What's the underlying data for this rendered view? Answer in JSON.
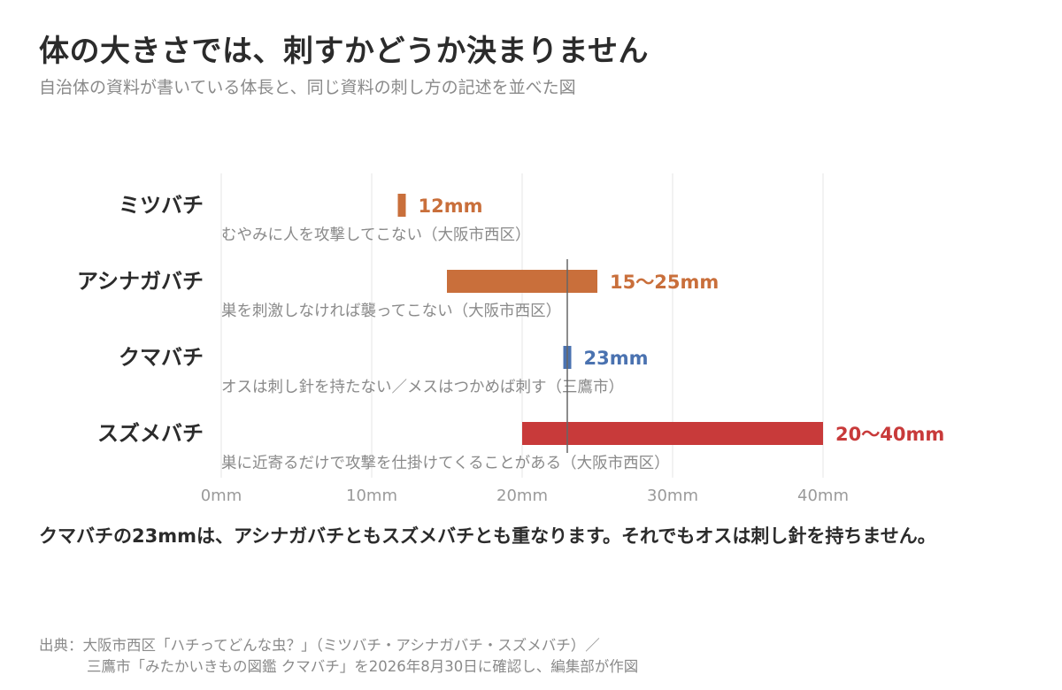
{
  "header": {
    "title": "体の大きさでは、刺すかどうか決まりません",
    "subtitle": "自治体の資料が書いている体長と、同じ資料の刺し方の記述を並べた図"
  },
  "chart_data": {
    "type": "bar",
    "orientation": "horizontal-range",
    "x_unit": "mm",
    "xlim": [
      0,
      40
    ],
    "x_ticks": [
      0,
      10,
      20,
      30,
      40
    ],
    "x_tick_labels": [
      "0mm",
      "10mm",
      "20mm",
      "30mm",
      "40mm"
    ],
    "grid": true,
    "reference_line": {
      "x": 23
    },
    "categories": [
      "ミツバチ",
      "アシナガバチ",
      "クマバチ",
      "スズメバチ"
    ],
    "series": [
      {
        "category": "ミツバチ",
        "min": 12,
        "max": 12,
        "value_label": "12mm",
        "color": "#c96f3b",
        "note": "むやみに人を攻撃してこない（大阪市西区）"
      },
      {
        "category": "アシナガバチ",
        "min": 15,
        "max": 25,
        "value_label": "15〜25mm",
        "color": "#c96f3b",
        "note": "巣を刺激しなければ襲ってこない（大阪市西区）"
      },
      {
        "category": "クマバチ",
        "min": 23,
        "max": 23,
        "value_label": "23mm",
        "color": "#4a72b0",
        "note": "オスは刺し針を持たない／メスはつかめば刺す（三鷹市）"
      },
      {
        "category": "スズメバチ",
        "min": 20,
        "max": 40,
        "value_label": "20〜40mm",
        "color": "#c83a3a",
        "note": "巣に近寄るだけで攻撃を仕掛けてくることがある（大阪市西区）"
      }
    ]
  },
  "takeaway": "クマバチの23mmは、アシナガバチともスズメバチとも重なります。それでもオスは刺し針を持ちません。",
  "source": {
    "line1": "出典：大阪市西区「ハチってどんな虫？」（ミツバチ・アシナガバチ・スズメバチ）／",
    "line2": "三鷹市「みたかいきもの図鑑 クマバチ」を2026年8月30日に確認し、編集部が作図"
  }
}
